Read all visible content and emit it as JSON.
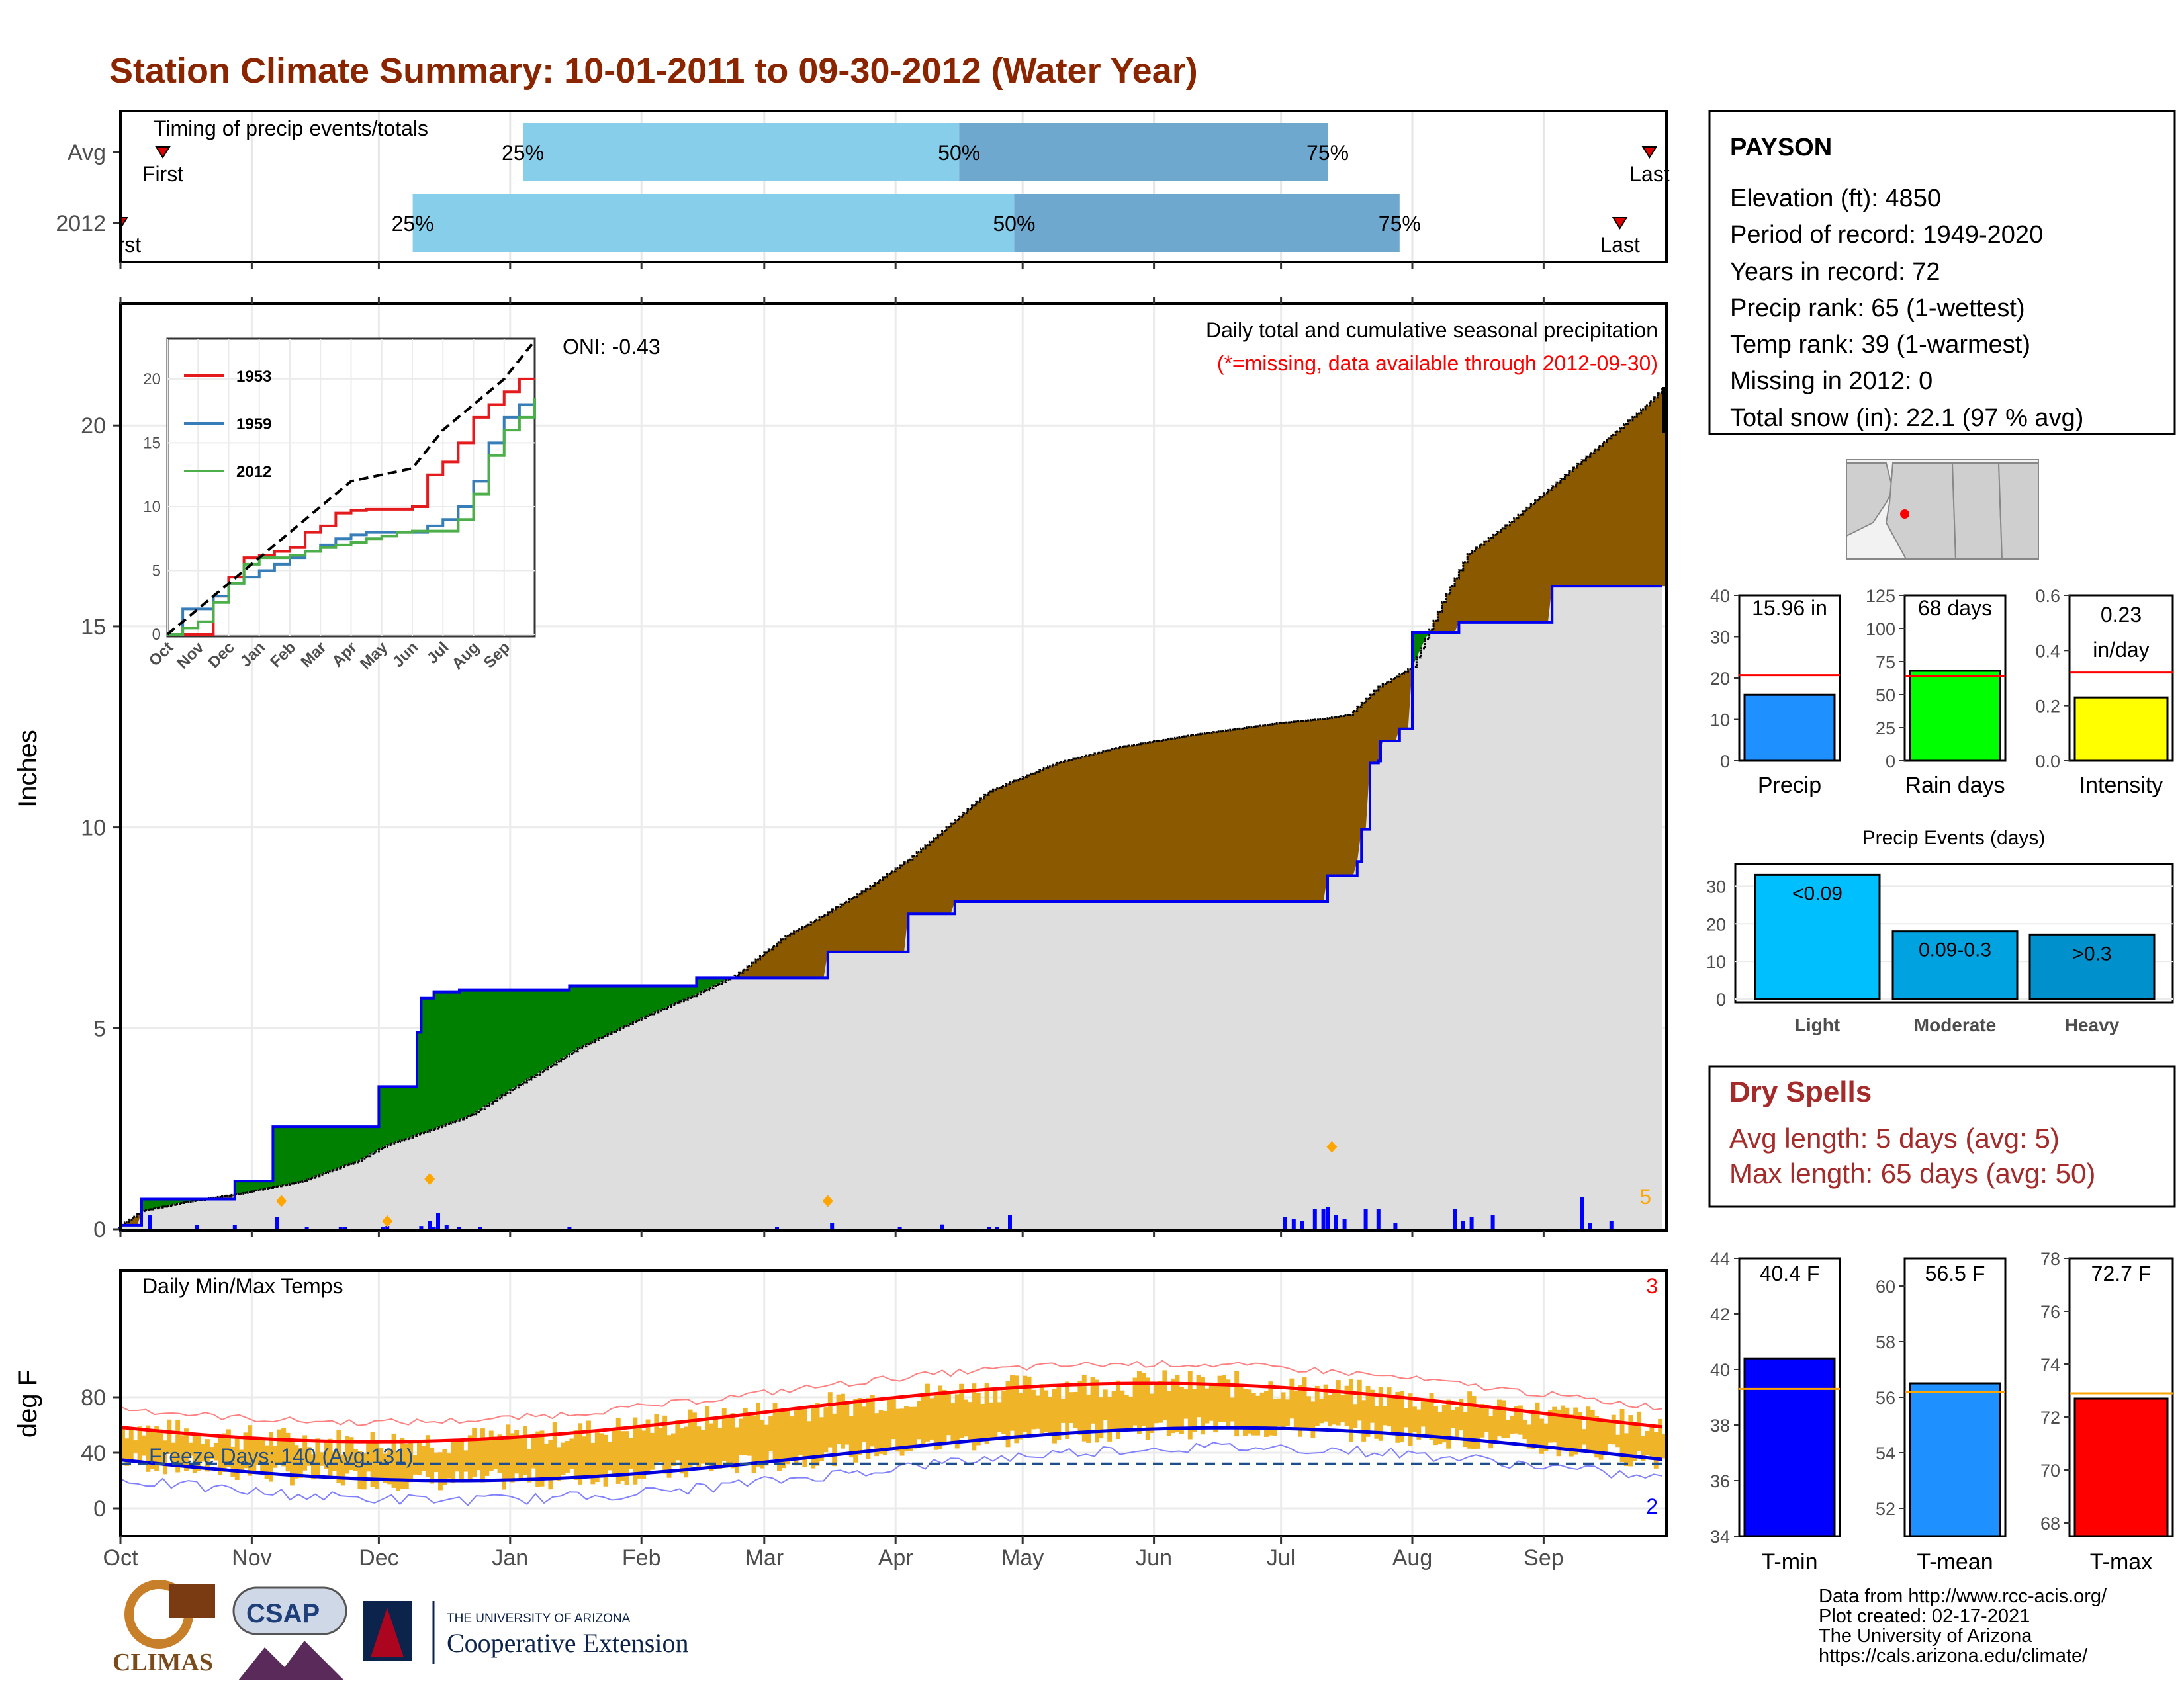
{
  "title": "Station Climate Summary: 10-01-2011 to 09-30-2012 (Water Year)",
  "months": [
    "Oct",
    "Nov",
    "Dec",
    "Jan",
    "Feb",
    "Mar",
    "Apr",
    "May",
    "Jun",
    "Jul",
    "Aug",
    "Sep"
  ],
  "timing": {
    "label": "Timing of precip events/totals",
    "rows": [
      {
        "name": "Avg",
        "first_label": "First",
        "last_label": "Last",
        "first_day": 10,
        "p25": 95,
        "p50": 198,
        "p75": 285,
        "last_day": 361
      },
      {
        "name": "2012",
        "first_label": "First",
        "last_label": "Last",
        "first_day": 0,
        "p25": 69,
        "p50": 211,
        "p75": 302,
        "last_day": 354
      }
    ],
    "pct_labels": [
      "25%",
      "50%",
      "75%"
    ]
  },
  "precip": {
    "ylabel": "Inches",
    "yticks": [
      0,
      5,
      10,
      15,
      20
    ],
    "ylim": [
      0,
      23
    ],
    "caption": "Daily total and cumulative seasonal precipitation",
    "missing_note": "(*=missing, data available through 2012-09-30)",
    "oni": "ONI: -0.43",
    "count_label": "5",
    "chart_data": {
      "type": "area",
      "x_days": [
        0,
        5,
        14,
        29,
        43,
        48,
        56,
        63,
        74,
        83,
        91,
        102,
        108,
        126,
        135,
        145,
        157,
        164,
        175,
        186,
        195,
        205,
        221,
        236,
        253,
        274,
        284,
        290,
        297,
        305,
        312,
        318,
        328,
        337,
        349,
        358,
        364
      ],
      "avg_cumulative": [
        0.1,
        0.45,
        0.65,
        0.9,
        1.2,
        1.4,
        1.7,
        2.1,
        2.5,
        2.85,
        3.4,
        4.1,
        4.5,
        5.4,
        5.8,
        6.3,
        7.3,
        7.7,
        8.4,
        9.2,
        10.0,
        10.9,
        11.6,
        12.0,
        12.3,
        12.6,
        12.7,
        12.8,
        13.5,
        14.0,
        15.6,
        16.8,
        17.6,
        18.4,
        19.5,
        20.3,
        20.9
      ],
      "step_days": [
        0,
        5,
        16,
        27,
        36,
        42,
        61,
        63,
        70,
        71,
        74,
        80,
        106,
        136,
        167,
        186,
        197,
        210,
        275,
        285,
        292,
        293,
        295,
        297,
        297.5,
        302,
        305,
        316,
        338,
        364
      ],
      "step_values": [
        0.1,
        0.75,
        0.75,
        1.2,
        2.55,
        2.55,
        3.55,
        3.55,
        4.9,
        5.75,
        5.9,
        5.95,
        6.05,
        6.25,
        6.9,
        7.85,
        8.15,
        8.15,
        8.15,
        8.8,
        9.15,
        9.95,
        11.6,
        11.65,
        12.15,
        12.45,
        14.85,
        15.1,
        16.0,
        16.0
      ],
      "daily_days": [
        0,
        7,
        18,
        27,
        37,
        44,
        52,
        53,
        62,
        63,
        71,
        73,
        74,
        75,
        77,
        80,
        85,
        106,
        155,
        168,
        184,
        194,
        205,
        207,
        210,
        275,
        277,
        279,
        282,
        284,
        285,
        287,
        289,
        294,
        297,
        301,
        315,
        317,
        319,
        324,
        345,
        347,
        352
      ],
      "daily_values": [
        0.05,
        0.35,
        0.1,
        0.1,
        0.3,
        0.05,
        0.06,
        0.05,
        0.05,
        0.08,
        0.08,
        0.2,
        0.05,
        0.4,
        0.1,
        0.05,
        0.06,
        0.05,
        0.05,
        0.15,
        0.05,
        0.12,
        0.05,
        0.05,
        0.35,
        0.3,
        0.25,
        0.2,
        0.5,
        0.5,
        0.55,
        0.35,
        0.25,
        0.5,
        0.5,
        0.15,
        0.5,
        0.2,
        0.3,
        0.35,
        0.8,
        0.15,
        0.2
      ],
      "flag_days": [
        38,
        63,
        73,
        167,
        286
      ],
      "flag_values": [
        0.7,
        0.2,
        1.25,
        0.7,
        2.05
      ]
    }
  },
  "inset": {
    "yticks": [
      0,
      5,
      10,
      15,
      20
    ],
    "series": [
      {
        "name": "1953",
        "color": "#e41a1c",
        "x": [
          0,
          0.5,
          1,
          1.5,
          2,
          2.5,
          3,
          3.5,
          4,
          4.5,
          5,
          5.5,
          6,
          6.5,
          7,
          7.5,
          8,
          8.5,
          9,
          9.5,
          10,
          10.5,
          11,
          11.5,
          12
        ],
        "values": [
          0,
          0,
          0,
          3,
          4.5,
          6,
          6.2,
          6.5,
          6.8,
          8,
          8.5,
          9.5,
          9.7,
          9.8,
          9.8,
          9.8,
          10,
          12.5,
          13.5,
          15,
          17,
          18,
          19,
          20,
          20
        ]
      },
      {
        "name": "1959",
        "color": "#377eb8",
        "x": [
          0,
          0.5,
          1,
          1.5,
          2,
          2.5,
          3,
          3.5,
          4,
          4.5,
          5,
          5.5,
          6,
          6.5,
          7,
          7.5,
          8,
          8.5,
          9,
          9.5,
          10,
          10.5,
          11,
          11.5,
          12
        ],
        "values": [
          0,
          2,
          2,
          3,
          4,
          4.5,
          5,
          5.5,
          6,
          6.5,
          7,
          7.5,
          7.8,
          8,
          8,
          8,
          8,
          8.5,
          9,
          10,
          12,
          15,
          17,
          18,
          18.5
        ]
      },
      {
        "name": "2012",
        "color": "#4daf4a",
        "x": [
          0,
          0.5,
          1,
          1.5,
          2,
          2.5,
          3,
          3.5,
          4,
          4.5,
          5,
          5.5,
          6,
          6.5,
          7,
          7.5,
          8,
          8.5,
          9,
          9.5,
          10,
          10.5,
          11,
          11.5,
          12
        ],
        "values": [
          0,
          0.5,
          1,
          2.5,
          4,
          5.5,
          6,
          6,
          6.2,
          6.5,
          6.8,
          7,
          7.2,
          7.5,
          7.7,
          8,
          8.1,
          8.1,
          8.1,
          9,
          11,
          14,
          16,
          17,
          18.5
        ]
      },
      {
        "name": "",
        "color": "#000000",
        "dashed": true,
        "x": [
          0,
          1,
          2,
          3,
          4,
          5,
          6,
          7,
          8,
          9,
          10,
          11,
          12
        ],
        "values": [
          0,
          2,
          4,
          6,
          8,
          10,
          12,
          12.5,
          13,
          16,
          18,
          20,
          23
        ]
      }
    ],
    "xticks": [
      "Oct",
      "Nov",
      "Dec",
      "Jan",
      "Feb",
      "Mar",
      "Apr",
      "May",
      "Jun",
      "Jul",
      "Aug",
      "Sep"
    ]
  },
  "station": {
    "name": "PAYSON",
    "elevation": "Elevation (ft): 4850",
    "period": "Period of record: 1949-2020",
    "years": "Years in record: 72",
    "precip_rank": "Precip rank: 65 (1-wettest)",
    "temp_rank": "Temp rank: 39 (1-warmest)",
    "missing": "Missing in 2012: 0",
    "snow": "Total snow (in): 22.1 (97 % avg)"
  },
  "mini_bars": [
    {
      "name": "Precip",
      "label": "15.96 in",
      "value": 15.96,
      "avg": 20.7,
      "ymax": 40,
      "yticks": [
        0,
        10,
        20,
        30,
        40
      ],
      "color": "#1e90ff"
    },
    {
      "name": "Rain days",
      "label": "68 days",
      "value": 68,
      "avg": 64,
      "ymax": 125,
      "yticks": [
        0,
        25,
        50,
        75,
        100,
        125
      ],
      "color": "#00ff00"
    },
    {
      "name": "Intensity",
      "label": "0.23 in/day",
      "value": 0.23,
      "avg": 0.32,
      "ymax": 0.6,
      "yticks": [
        "0.0",
        "0.2",
        "0.4",
        "0.6"
      ],
      "color": "#ffff00"
    }
  ],
  "events": {
    "title": "Precip Events (days)",
    "yticks": [
      0,
      10,
      20,
      30
    ],
    "categories": [
      "Light",
      "Moderate",
      "Heavy"
    ],
    "labels": [
      "<0.09",
      "0.09-0.3",
      ">0.3"
    ],
    "values": [
      33,
      18,
      17
    ],
    "colors": [
      "#00bfff",
      "#00a2e0",
      "#0090cc"
    ]
  },
  "dry": {
    "title": "Dry Spells",
    "avg": "Avg length: 5 days (avg: 5)",
    "max": "Max length: 65 days (avg: 50)"
  },
  "temps": {
    "label": "Daily Min/Max Temps",
    "ylabel": "deg F",
    "yticks": [
      0,
      40,
      80
    ],
    "freeze": "Freeze Days: 140 (Avg:131)",
    "top_count": "3",
    "bottom_count": "2",
    "freeze_line": 32
  },
  "temp_bars": [
    {
      "name": "T-min",
      "label": "40.4 F",
      "value": 40.4,
      "avg": 39.3,
      "ymin": 34,
      "ymax": 44,
      "yticks": [
        34,
        36,
        38,
        40,
        42,
        44
      ],
      "color": "#0000ff"
    },
    {
      "name": "T-mean",
      "label": "56.5 F",
      "value": 56.5,
      "avg": 56.2,
      "ymin": 51,
      "ymax": 61,
      "yticks": [
        52,
        54,
        56,
        58,
        60
      ],
      "color": "#1e90ff"
    },
    {
      "name": "T-max",
      "label": "72.7 F",
      "value": 72.7,
      "avg": 72.9,
      "ymin": 67.5,
      "ymax": 78,
      "yticks": [
        68,
        70,
        72,
        74,
        76,
        78
      ],
      "color": "#ff0000"
    }
  ],
  "footer": {
    "line1": "Data from http://www.rcc-acis.org/",
    "line2": "Plot created: 02-17-2021",
    "line3": "The University of Arizona",
    "line4": "https://cals.arizona.edu/climate/",
    "climas": "CLIMAS",
    "csap": "CSAP",
    "ua_small": "THE UNIVERSITY OF ARIZONA",
    "ua_big": "Cooperative Extension"
  }
}
